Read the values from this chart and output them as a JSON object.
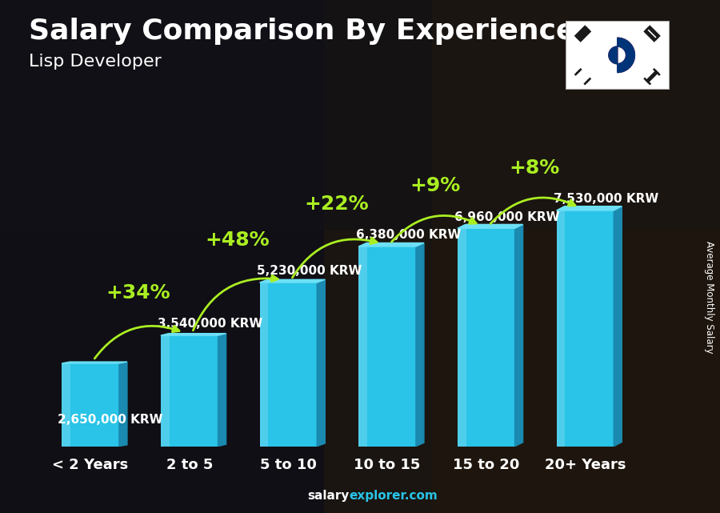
{
  "title": "Salary Comparison By Experience",
  "subtitle": "Lisp Developer",
  "categories": [
    "< 2 Years",
    "2 to 5",
    "5 to 10",
    "10 to 15",
    "15 to 20",
    "20+ Years"
  ],
  "values": [
    2650000,
    3540000,
    5230000,
    6380000,
    6960000,
    7530000
  ],
  "value_labels": [
    "2,650,000 KRW",
    "3,540,000 KRW",
    "5,230,000 KRW",
    "6,380,000 KRW",
    "6,960,000 KRW",
    "7,530,000 KRW"
  ],
  "pct_changes": [
    null,
    "+34%",
    "+48%",
    "+22%",
    "+9%",
    "+8%"
  ],
  "bar_face_color": "#29c4e8",
  "bar_side_color": "#1a8ab0",
  "bar_top_color": "#6de0f5",
  "text_color_white": "#ffffff",
  "text_color_green": "#aaee22",
  "ylabel": "Average Monthly Salary",
  "ylim_max": 9500000,
  "title_fontsize": 26,
  "subtitle_fontsize": 16,
  "xlabel_fontsize": 13,
  "value_label_fontsize": 11,
  "pct_fontsize": 18,
  "footer_salary_color": "#ffffff",
  "footer_explorer_color": "#29c4e8"
}
